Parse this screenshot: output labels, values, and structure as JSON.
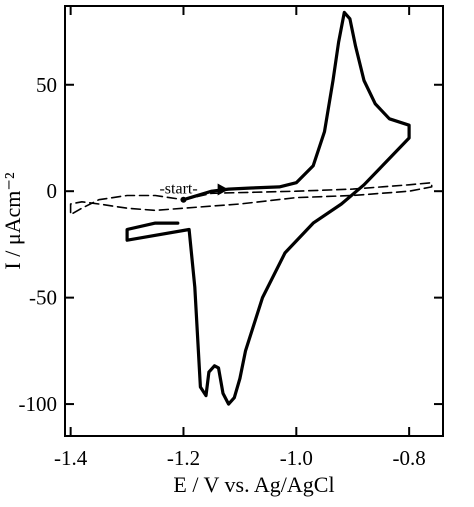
{
  "chart_data": {
    "type": "line",
    "title": "",
    "xlabel": "E / V vs. Ag/AgCl",
    "ylabel": "I / μAcm⁻²",
    "xlim": [
      -1.41,
      -0.74
    ],
    "ylim": [
      -115,
      87
    ],
    "x_ticks": [
      -1.4,
      -1.2,
      -1.0,
      -0.8
    ],
    "x_tick_labels": [
      "-1.4",
      "-1.2",
      "-1.0",
      "-0.8"
    ],
    "y_ticks": [
      50,
      0,
      -50,
      -100
    ],
    "y_tick_labels": [
      "50",
      "0",
      "-50",
      "-100"
    ],
    "grid": false,
    "legend": "none",
    "annotations": [
      {
        "text": "-start-",
        "x": -1.2,
        "y": -4
      }
    ],
    "series": [
      {
        "style": "solid",
        "color": "#000000",
        "x": [
          -1.2,
          -1.15,
          -1.12,
          -1.08,
          -1.03,
          -1.0,
          -0.97,
          -0.95,
          -0.935,
          -0.925,
          -0.915,
          -0.905,
          -0.895,
          -0.88,
          -0.86,
          -0.835,
          -0.8,
          -0.8,
          -0.8,
          -0.84,
          -0.88,
          -0.92,
          -0.97,
          -1.02,
          -1.06,
          -1.09,
          -1.1,
          -1.11,
          -1.12,
          -1.13,
          -1.138,
          -1.145,
          -1.155,
          -1.16,
          -1.17,
          -1.18,
          -1.19,
          -1.3,
          -1.3,
          -1.25,
          -1.21
        ],
        "y": [
          -4,
          0,
          1,
          1.5,
          2,
          4,
          12,
          28,
          52,
          70,
          84,
          81,
          68,
          52,
          41,
          34,
          31,
          28,
          25,
          14,
          3,
          -6,
          -15,
          -29,
          -50,
          -75,
          -88,
          -97,
          -100,
          -95,
          -83,
          -82,
          -85,
          -96,
          -92,
          -45,
          -18,
          -23,
          -18,
          -15,
          -15
        ]
      },
      {
        "style": "dashed",
        "color": "#000000",
        "x": [
          -1.2,
          -1.15,
          -1.0,
          -0.9,
          -0.8,
          -0.76,
          -0.76,
          -0.8,
          -0.9,
          -1.0,
          -1.1,
          -1.2,
          -1.25,
          -1.3,
          -1.35,
          -1.38,
          -1.4,
          -1.4,
          -1.38,
          -1.35,
          -1.3,
          -1.25,
          -1.2
        ],
        "y": [
          -4,
          -1,
          0,
          1,
          3,
          4,
          2,
          0,
          -2,
          -3,
          -6,
          -8,
          -9,
          -8,
          -6,
          -5,
          -6,
          -11,
          -8,
          -4,
          -2,
          -2,
          -4
        ]
      }
    ]
  }
}
